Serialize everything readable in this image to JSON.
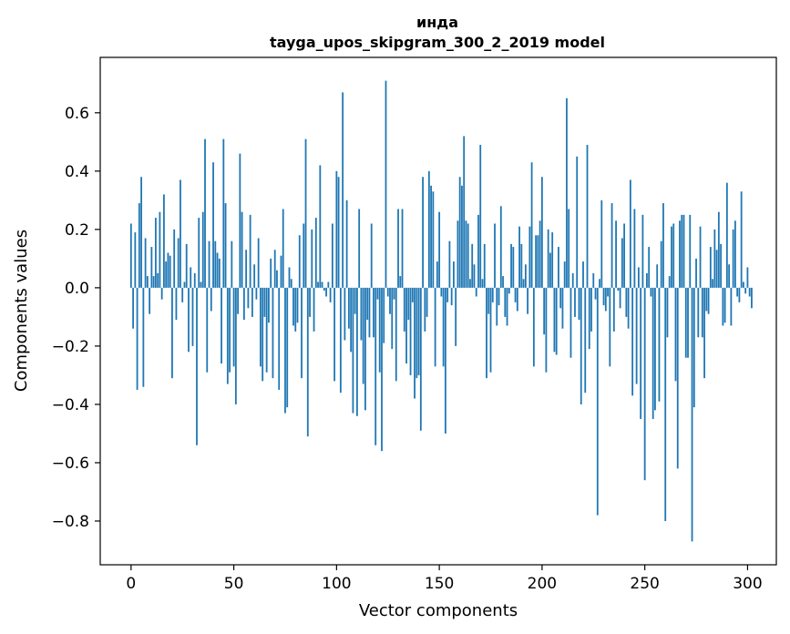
{
  "chart_data": {
    "type": "bar",
    "title": "инда",
    "subtitle": "tayga_upos_skipgram_300_2_2019 model",
    "xlabel": "Vector components",
    "ylabel": "Components values",
    "xlim": [
      -15,
      314
    ],
    "ylim": [
      -0.95,
      0.79
    ],
    "xticks": [
      0,
      50,
      100,
      150,
      200,
      250,
      300
    ],
    "xtick_labels": [
      "0",
      "50",
      "100",
      "150",
      "200",
      "250",
      "300"
    ],
    "yticks": [
      -0.8,
      -0.6,
      -0.4,
      -0.2,
      0.0,
      0.2,
      0.4,
      0.6
    ],
    "ytick_labels": [
      "−0.8",
      "−0.6",
      "−0.4",
      "−0.2",
      "0.0",
      "0.2",
      "0.4",
      "0.6"
    ],
    "bar_color": "#1f77b4",
    "x_start": 0,
    "values": [
      0.22,
      -0.14,
      0.19,
      -0.35,
      0.29,
      0.38,
      -0.34,
      0.17,
      0.04,
      -0.09,
      0.14,
      0.04,
      0.24,
      0.05,
      0.26,
      -0.04,
      0.32,
      0.09,
      0.12,
      0.11,
      -0.31,
      0.2,
      -0.11,
      0.17,
      0.37,
      -0.05,
      0.02,
      0.15,
      -0.22,
      0.07,
      -0.2,
      0.05,
      -0.54,
      0.24,
      0.02,
      0.26,
      0.51,
      -0.29,
      0.16,
      -0.08,
      0.43,
      0.16,
      0.12,
      0.1,
      -0.26,
      0.51,
      0.29,
      -0.33,
      -0.29,
      0.16,
      -0.27,
      -0.4,
      -0.09,
      0.46,
      0.26,
      -0.11,
      0.13,
      -0.07,
      0.25,
      -0.1,
      0.08,
      -0.04,
      0.17,
      -0.27,
      -0.32,
      -0.1,
      -0.29,
      -0.12,
      0.1,
      -0.31,
      0.13,
      0.06,
      -0.35,
      0.11,
      0.27,
      -0.43,
      -0.41,
      0.07,
      0.03,
      -0.13,
      -0.15,
      -0.12,
      0.18,
      -0.31,
      0.22,
      0.51,
      -0.51,
      -0.1,
      0.2,
      -0.15,
      0.24,
      0.02,
      0.42,
      0.02,
      -0.01,
      -0.03,
      0.02,
      -0.05,
      0.22,
      -0.32,
      0.4,
      0.38,
      -0.36,
      0.67,
      -0.18,
      0.3,
      -0.14,
      -0.22,
      -0.43,
      -0.09,
      -0.44,
      0.27,
      -0.18,
      -0.33,
      -0.42,
      -0.11,
      -0.17,
      0.22,
      -0.17,
      -0.54,
      -0.04,
      -0.29,
      -0.56,
      -0.19,
      0.71,
      -0.03,
      -0.09,
      -0.21,
      -0.04,
      -0.32,
      0.27,
      0.04,
      0.27,
      -0.15,
      -0.26,
      -0.11,
      -0.3,
      -0.05,
      -0.38,
      -0.31,
      -0.3,
      -0.49,
      0.38,
      -0.15,
      -0.1,
      0.4,
      0.35,
      0.33,
      -0.27,
      0.09,
      0.26,
      -0.03,
      -0.27,
      -0.5,
      -0.05,
      0.16,
      -0.06,
      0.09,
      -0.2,
      0.23,
      0.38,
      0.35,
      0.52,
      0.23,
      0.22,
      0.03,
      0.15,
      0.08,
      -0.03,
      0.25,
      0.49,
      0.03,
      0.15,
      -0.31,
      -0.09,
      -0.29,
      -0.05,
      0.22,
      -0.13,
      -0.06,
      0.28,
      0.04,
      -0.1,
      -0.13,
      -0.02,
      0.15,
      0.14,
      -0.05,
      -0.08,
      0.21,
      0.15,
      0.03,
      0.08,
      -0.09,
      0.21,
      0.43,
      -0.27,
      0.18,
      0.18,
      0.23,
      0.38,
      -0.16,
      -0.29,
      0.2,
      0.12,
      0.19,
      -0.22,
      -0.23,
      0.14,
      -0.07,
      -0.14,
      0.09,
      0.65,
      0.27,
      -0.24,
      0.05,
      -0.1,
      0.45,
      -0.11,
      -0.4,
      0.09,
      -0.36,
      0.49,
      -0.21,
      -0.15,
      0.05,
      -0.04,
      -0.78,
      0.03,
      0.3,
      -0.06,
      -0.08,
      -0.03,
      -0.27,
      0.29,
      -0.15,
      0.23,
      -0.01,
      -0.07,
      0.17,
      0.22,
      -0.1,
      -0.14,
      0.37,
      -0.37,
      0.27,
      -0.33,
      0.07,
      -0.45,
      0.25,
      -0.66,
      0.05,
      0.14,
      -0.03,
      -0.45,
      -0.42,
      0.08,
      -0.39,
      0.16,
      0.29,
      -0.8,
      -0.17,
      0.04,
      0.21,
      0.22,
      -0.32,
      -0.62,
      0.23,
      0.25,
      0.25,
      -0.24,
      -0.24,
      0.25,
      -0.87,
      -0.41,
      0.1,
      -0.17,
      0.21,
      -0.17,
      -0.31,
      -0.08,
      -0.09,
      0.14,
      0.03,
      0.2,
      0.13,
      0.26,
      0.15,
      -0.13,
      -0.12,
      0.36,
      0.08,
      -0.13,
      0.2,
      0.23,
      -0.03,
      -0.05,
      0.33,
      0.02,
      -0.02,
      0.07,
      -0.03,
      -0.07
    ]
  }
}
